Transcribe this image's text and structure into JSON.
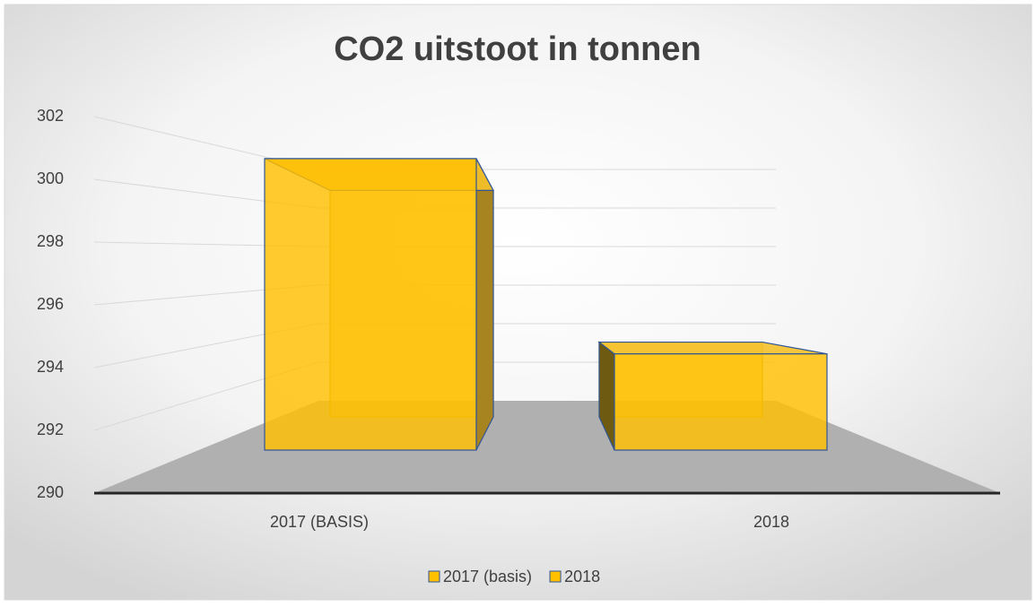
{
  "chart_data": {
    "type": "bar3d",
    "title": "CO2 uitstoot in tonnen",
    "categories": [
      "2017 (BASIS)",
      "2018"
    ],
    "series": [
      {
        "name": "2017 (basis)",
        "color": "#ffc000",
        "values": [
          300.6,
          null
        ]
      },
      {
        "name": "2018",
        "color": "#ffc000",
        "values": [
          null,
          293.5
        ]
      }
    ],
    "ylim": [
      290,
      302
    ],
    "yticks": [
      290,
      292,
      294,
      296,
      298,
      300,
      302
    ],
    "grid": true,
    "legend": "bottom"
  }
}
